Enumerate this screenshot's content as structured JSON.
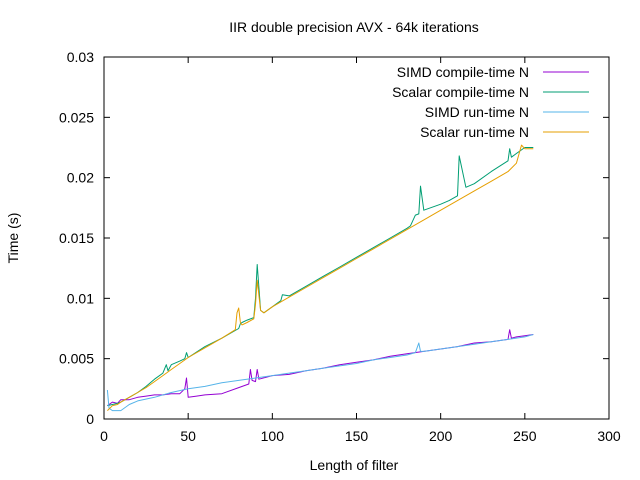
{
  "chart_data": {
    "type": "line",
    "title": "IIR double precision AVX - 64k iterations",
    "xlabel": "Length of filter",
    "ylabel": "Time (s)",
    "xlim": [
      0,
      300
    ],
    "ylim": [
      0,
      0.03
    ],
    "x_ticks": [
      "0",
      "50",
      "100",
      "150",
      "200",
      "250",
      "300"
    ],
    "y_ticks": [
      "0",
      "0.005",
      "0.01",
      "0.015",
      "0.02",
      "0.025",
      "0.03"
    ],
    "grid": false,
    "legend_position": "top-right",
    "series": [
      {
        "name": "SIMD compile-time N",
        "color": "#9400d3",
        "x": [
          2,
          5,
          8,
          10,
          15,
          20,
          25,
          30,
          35,
          40,
          45,
          48,
          49,
          50,
          55,
          60,
          70,
          80,
          86,
          87,
          88,
          90,
          91,
          92,
          100,
          110,
          120,
          130,
          140,
          150,
          160,
          170,
          180,
          190,
          200,
          210,
          220,
          230,
          240,
          241,
          242,
          245,
          250,
          255
        ],
        "y": [
          0.0011,
          0.0014,
          0.0013,
          0.0016,
          0.0016,
          0.0018,
          0.0019,
          0.002,
          0.002,
          0.0021,
          0.0021,
          0.0025,
          0.0034,
          0.0018,
          0.0019,
          0.002,
          0.0021,
          0.0026,
          0.0029,
          0.0041,
          0.0032,
          0.0031,
          0.0041,
          0.0033,
          0.0036,
          0.0037,
          0.004,
          0.0042,
          0.0045,
          0.0047,
          0.0049,
          0.0052,
          0.0054,
          0.0056,
          0.0058,
          0.006,
          0.0063,
          0.0064,
          0.0066,
          0.0074,
          0.0067,
          0.0068,
          0.0069,
          0.007
        ]
      },
      {
        "name": "Scalar compile-time N",
        "color": "#009e73",
        "x": [
          2,
          5,
          8,
          10,
          15,
          20,
          25,
          30,
          35,
          37,
          38,
          40,
          45,
          48,
          49,
          50,
          60,
          70,
          80,
          81,
          82,
          85,
          89,
          90,
          91,
          93,
          95,
          100,
          105,
          106,
          110,
          120,
          130,
          140,
          150,
          160,
          170,
          180,
          182,
          185,
          187,
          188,
          190,
          200,
          205,
          210,
          211,
          215,
          220,
          230,
          240,
          241,
          242,
          245,
          250,
          255
        ],
        "y": [
          0.0011,
          0.0012,
          0.0013,
          0.0014,
          0.0018,
          0.0022,
          0.0027,
          0.0033,
          0.0038,
          0.0045,
          0.004,
          0.0045,
          0.0048,
          0.005,
          0.0055,
          0.0051,
          0.006,
          0.0067,
          0.0075,
          0.0079,
          0.008,
          0.0082,
          0.0084,
          0.01,
          0.0128,
          0.009,
          0.0088,
          0.0093,
          0.0098,
          0.0103,
          0.0102,
          0.011,
          0.0118,
          0.0126,
          0.0134,
          0.0142,
          0.015,
          0.0158,
          0.016,
          0.0169,
          0.017,
          0.0193,
          0.0173,
          0.0178,
          0.0181,
          0.0185,
          0.0218,
          0.0192,
          0.0195,
          0.0205,
          0.0214,
          0.0224,
          0.0217,
          0.022,
          0.0225,
          0.0225
        ]
      },
      {
        "name": "SIMD run-time N",
        "color": "#56b4e9",
        "x": [
          2,
          3,
          5,
          8,
          10,
          15,
          20,
          30,
          40,
          50,
          60,
          70,
          80,
          90,
          100,
          110,
          120,
          130,
          140,
          150,
          160,
          170,
          180,
          185,
          187,
          188,
          190,
          200,
          210,
          220,
          230,
          240,
          250,
          255
        ],
        "y": [
          0.0024,
          0.0009,
          0.0007,
          0.0007,
          0.0007,
          0.0012,
          0.0015,
          0.0018,
          0.0022,
          0.0025,
          0.0027,
          0.003,
          0.0032,
          0.0034,
          0.0036,
          0.0038,
          0.004,
          0.0042,
          0.0044,
          0.0046,
          0.0049,
          0.0051,
          0.0053,
          0.0055,
          0.0063,
          0.0056,
          0.0056,
          0.0058,
          0.006,
          0.0062,
          0.0064,
          0.0066,
          0.0068,
          0.007
        ]
      },
      {
        "name": "Scalar run-time N",
        "color": "#e69f00",
        "x": [
          2,
          5,
          8,
          10,
          15,
          20,
          25,
          30,
          35,
          40,
          45,
          50,
          60,
          70,
          78,
          79,
          80,
          81,
          82,
          85,
          89,
          90,
          91,
          93,
          95,
          100,
          110,
          120,
          130,
          140,
          150,
          160,
          170,
          180,
          190,
          200,
          210,
          220,
          230,
          240,
          245,
          248,
          250,
          255
        ],
        "y": [
          0.0007,
          0.0011,
          0.0012,
          0.0014,
          0.0018,
          0.0022,
          0.0026,
          0.0031,
          0.0036,
          0.0041,
          0.0046,
          0.0051,
          0.0059,
          0.0067,
          0.0074,
          0.0088,
          0.0092,
          0.008,
          0.0078,
          0.008,
          0.0083,
          0.0095,
          0.0115,
          0.009,
          0.0088,
          0.0093,
          0.0101,
          0.0109,
          0.0117,
          0.0125,
          0.0133,
          0.0141,
          0.0149,
          0.0157,
          0.0165,
          0.0173,
          0.0181,
          0.0189,
          0.0197,
          0.0205,
          0.0212,
          0.0227,
          0.0224,
          0.0224
        ]
      }
    ]
  }
}
